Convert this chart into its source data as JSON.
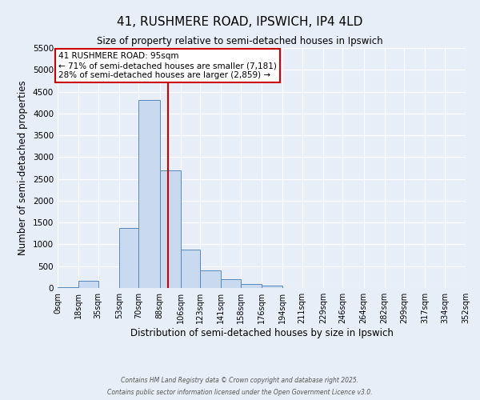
{
  "title": "41, RUSHMERE ROAD, IPSWICH, IP4 4LD",
  "subtitle": "Size of property relative to semi-detached houses in Ipswich",
  "xlabel": "Distribution of semi-detached houses by size in Ipswich",
  "ylabel": "Number of semi-detached properties",
  "bin_edges": [
    0,
    18,
    35,
    53,
    70,
    88,
    106,
    123,
    141,
    158,
    176,
    194,
    211,
    229,
    246,
    264,
    282,
    299,
    317,
    334,
    352
  ],
  "bar_heights": [
    10,
    170,
    0,
    1380,
    4300,
    2700,
    880,
    400,
    200,
    85,
    55,
    0,
    0,
    0,
    0,
    0,
    0,
    0,
    0,
    0
  ],
  "bar_color": "#c9d9f0",
  "bar_edge_color": "#5588bb",
  "property_size": 95,
  "vline_color": "#cc0000",
  "annotation_line1": "41 RUSHMERE ROAD: 95sqm",
  "annotation_line2": "← 71% of semi-detached houses are smaller (7,181)",
  "annotation_line3": "28% of semi-detached houses are larger (2,859) →",
  "annotation_box_color": "#ffffff",
  "annotation_box_edge_color": "#cc0000",
  "ylim": [
    0,
    5500
  ],
  "yticks": [
    0,
    500,
    1000,
    1500,
    2000,
    2500,
    3000,
    3500,
    4000,
    4500,
    5000,
    5500
  ],
  "background_color": "#e8eef8",
  "grid_color": "#ffffff",
  "footer_line1": "Contains HM Land Registry data © Crown copyright and database right 2025.",
  "footer_line2": "Contains public sector information licensed under the Open Government Licence v3.0."
}
